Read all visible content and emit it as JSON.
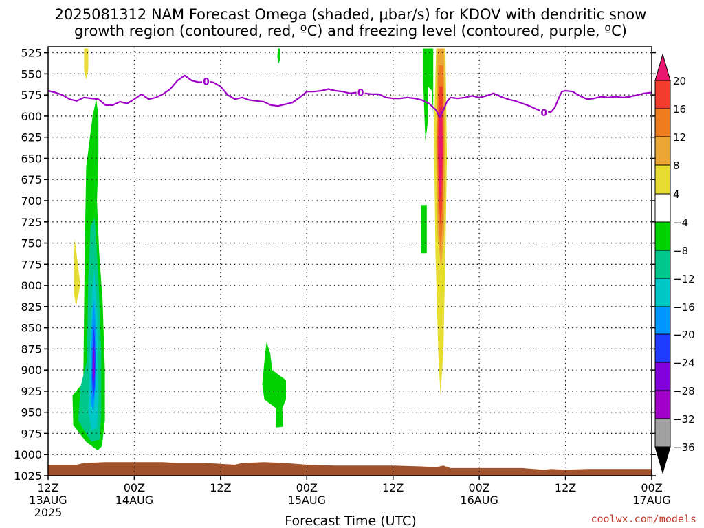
{
  "chart_data": {
    "type": "heatmap",
    "title_lines": [
      "2025081312 NAM Forecast Omega (shaded, μbar/s) for KDOV with dendritic snow",
      "growth region (contoured, red, ºC) and freezing level (contoured, purple, ºC)"
    ],
    "xlabel": "Forecast Time (UTC)",
    "credit": "coolwx.com/models",
    "y_axis": {
      "scale": "pressure (hPa), inverted",
      "ticks": [
        525,
        550,
        575,
        600,
        625,
        650,
        675,
        700,
        725,
        750,
        775,
        800,
        825,
        850,
        875,
        900,
        925,
        950,
        975,
        1000,
        1025
      ],
      "ylim": [
        1025,
        518
      ]
    },
    "x_axis": {
      "xlim_hours": [
        0,
        84
      ],
      "ticks": [
        {
          "hour": 0,
          "lines": [
            "12Z",
            "13AUG",
            "2025"
          ]
        },
        {
          "hour": 12,
          "lines": [
            "00Z",
            "14AUG"
          ]
        },
        {
          "hour": 24,
          "lines": [
            "12Z"
          ]
        },
        {
          "hour": 36,
          "lines": [
            "00Z",
            "15AUG"
          ]
        },
        {
          "hour": 48,
          "lines": [
            "12Z"
          ]
        },
        {
          "hour": 60,
          "lines": [
            "00Z",
            "16AUG"
          ]
        },
        {
          "hour": 72,
          "lines": [
            "12Z"
          ]
        },
        {
          "hour": 84,
          "lines": [
            "00Z",
            "17AUG"
          ]
        }
      ]
    },
    "grid": true,
    "colorbar": {
      "labels": [
        "20",
        "16",
        "12",
        "8",
        "4",
        "−4",
        "−8",
        "−12",
        "−16",
        "−20",
        "−24",
        "−28",
        "−32",
        "−36"
      ],
      "bins": [
        {
          "min": 20,
          "max": null,
          "color": "#e8186e"
        },
        {
          "min": 16,
          "max": 20,
          "color": "#f23c2c"
        },
        {
          "min": 12,
          "max": 16,
          "color": "#f07c20"
        },
        {
          "min": 8,
          "max": 12,
          "color": "#eca636"
        },
        {
          "min": 4,
          "max": 8,
          "color": "#e6dc32"
        },
        {
          "min": -4,
          "max": 4,
          "color": "#ffffff"
        },
        {
          "min": -8,
          "max": -4,
          "color": "#00d200"
        },
        {
          "min": -12,
          "max": -8,
          "color": "#00c88c"
        },
        {
          "min": -16,
          "max": -12,
          "color": "#00c8c8"
        },
        {
          "min": -20,
          "max": -16,
          "color": "#0096ff"
        },
        {
          "min": -24,
          "max": -20,
          "color": "#1e3cff"
        },
        {
          "min": -28,
          "max": -24,
          "color": "#8200dc"
        },
        {
          "min": -32,
          "max": -28,
          "color": "#a000c8"
        },
        {
          "min": -36,
          "max": -32,
          "color": "#a0a0a0"
        },
        {
          "min": null,
          "max": -36,
          "color": "#000000"
        }
      ]
    },
    "omega_regions": [
      {
        "color": "#e6dc32",
        "points": [
          [
            5.0,
            520
          ],
          [
            5.6,
            520
          ],
          [
            5.6,
            545
          ],
          [
            5.3,
            557
          ],
          [
            5.0,
            545
          ]
        ]
      },
      {
        "color": "#e6dc32",
        "points": [
          [
            3.7,
            745
          ],
          [
            4.0,
            765
          ],
          [
            4.5,
            800
          ],
          [
            4.1,
            815
          ],
          [
            3.9,
            825
          ],
          [
            3.6,
            810
          ],
          [
            3.6,
            770
          ]
        ]
      },
      {
        "color": "#00d200",
        "points": [
          [
            6.7,
            580
          ],
          [
            7.0,
            600
          ],
          [
            7.0,
            650
          ],
          [
            6.8,
            700
          ],
          [
            7.1,
            760
          ],
          [
            7.6,
            820
          ],
          [
            7.9,
            900
          ],
          [
            7.9,
            960
          ],
          [
            7.5,
            990
          ],
          [
            6.9,
            995
          ],
          [
            5.3,
            985
          ],
          [
            3.5,
            965
          ],
          [
            3.4,
            930
          ],
          [
            4.9,
            915
          ],
          [
            5.1,
            760
          ],
          [
            5.3,
            660
          ],
          [
            6.2,
            600
          ]
        ]
      },
      {
        "color": "#00c88c",
        "points": [
          [
            6.5,
            720
          ],
          [
            7.0,
            790
          ],
          [
            7.4,
            880
          ],
          [
            7.4,
            950
          ],
          [
            7.2,
            982
          ],
          [
            6.0,
            985
          ],
          [
            4.2,
            960
          ],
          [
            4.5,
            920
          ],
          [
            5.4,
            890
          ],
          [
            5.6,
            790
          ],
          [
            5.9,
            730
          ]
        ]
      },
      {
        "color": "#00c8c8",
        "points": [
          [
            6.4,
            780
          ],
          [
            6.9,
            840
          ],
          [
            7.0,
            930
          ],
          [
            6.8,
            968
          ],
          [
            6.1,
            972
          ],
          [
            5.6,
            950
          ],
          [
            5.8,
            880
          ],
          [
            6.1,
            810
          ]
        ]
      },
      {
        "color": "#0096ff",
        "points": [
          [
            6.4,
            815
          ],
          [
            6.7,
            860
          ],
          [
            6.6,
            920
          ],
          [
            6.3,
            950
          ],
          [
            6.0,
            940
          ],
          [
            6.0,
            880
          ],
          [
            6.1,
            845
          ]
        ]
      },
      {
        "color": "#1e3cff",
        "points": [
          [
            6.4,
            845
          ],
          [
            6.6,
            885
          ],
          [
            6.5,
            920
          ],
          [
            6.3,
            935
          ],
          [
            6.1,
            910
          ],
          [
            6.2,
            870
          ]
        ]
      },
      {
        "color": "#8200dc",
        "points": [
          [
            6.4,
            870
          ],
          [
            6.5,
            905
          ],
          [
            6.3,
            915
          ],
          [
            6.2,
            890
          ]
        ]
      },
      {
        "color": "#00d200",
        "points": [
          [
            32.0,
            520
          ],
          [
            32.3,
            520
          ],
          [
            32.3,
            532
          ],
          [
            32.1,
            538
          ],
          [
            31.9,
            530
          ]
        ]
      },
      {
        "color": "#00d200",
        "points": [
          [
            30.4,
            867
          ],
          [
            30.9,
            880
          ],
          [
            31.2,
            900
          ],
          [
            33.1,
            912
          ],
          [
            33.1,
            935
          ],
          [
            32.6,
            945
          ],
          [
            32.7,
            967
          ],
          [
            31.7,
            968
          ],
          [
            31.7,
            945
          ],
          [
            30.1,
            935
          ],
          [
            29.8,
            917
          ],
          [
            30.2,
            880
          ]
        ]
      },
      {
        "color": "#00d200",
        "points": [
          [
            52.2,
            520
          ],
          [
            53.6,
            520
          ],
          [
            53.6,
            600
          ],
          [
            53.4,
            570
          ],
          [
            52.9,
            565
          ],
          [
            52.8,
            610
          ],
          [
            52.5,
            630
          ],
          [
            52.2,
            560
          ]
        ]
      },
      {
        "color": "#00d200",
        "points": [
          [
            51.9,
            705
          ],
          [
            52.7,
            705
          ],
          [
            52.7,
            762
          ],
          [
            51.9,
            762
          ]
        ]
      },
      {
        "color": "#e6dc32",
        "points": [
          [
            54.0,
            520
          ],
          [
            55.3,
            520
          ],
          [
            55.5,
            650
          ],
          [
            55.3,
            760
          ],
          [
            55.0,
            880
          ],
          [
            54.6,
            930
          ],
          [
            54.3,
            880
          ],
          [
            53.9,
            760
          ],
          [
            53.7,
            620
          ]
        ]
      },
      {
        "color": "#eca636",
        "points": [
          [
            54.2,
            520
          ],
          [
            55.1,
            520
          ],
          [
            55.3,
            640
          ],
          [
            55.1,
            740
          ],
          [
            54.7,
            780
          ],
          [
            54.2,
            740
          ],
          [
            54.0,
            640
          ]
        ]
      },
      {
        "color": "#f07c20",
        "points": [
          [
            54.3,
            540
          ],
          [
            55.0,
            540
          ],
          [
            55.1,
            640
          ],
          [
            54.9,
            730
          ],
          [
            54.6,
            760
          ],
          [
            54.3,
            720
          ],
          [
            54.1,
            630
          ]
        ]
      },
      {
        "color": "#f23c2c",
        "points": [
          [
            54.4,
            565
          ],
          [
            54.9,
            565
          ],
          [
            55.0,
            640
          ],
          [
            54.8,
            710
          ],
          [
            54.6,
            730
          ],
          [
            54.4,
            700
          ],
          [
            54.2,
            630
          ]
        ]
      },
      {
        "color": "#e8186e",
        "points": [
          [
            54.5,
            590
          ],
          [
            54.8,
            590
          ],
          [
            54.9,
            640
          ],
          [
            54.7,
            690
          ],
          [
            54.5,
            700
          ],
          [
            54.3,
            640
          ]
        ]
      }
    ],
    "freezing_level": {
      "label": "0",
      "label_positions": [
        [
          22.0,
          559
        ],
        [
          43.5,
          572
        ],
        [
          69.0,
          596
        ]
      ],
      "points": [
        [
          0,
          570
        ],
        [
          1,
          572
        ],
        [
          2,
          575
        ],
        [
          3,
          580
        ],
        [
          4,
          582
        ],
        [
          5,
          578
        ],
        [
          6,
          579
        ],
        [
          7,
          580
        ],
        [
          8,
          587
        ],
        [
          9,
          587
        ],
        [
          10,
          583
        ],
        [
          11,
          585
        ],
        [
          12,
          580
        ],
        [
          13,
          574
        ],
        [
          14,
          580
        ],
        [
          15,
          578
        ],
        [
          16,
          574
        ],
        [
          17,
          568
        ],
        [
          18,
          558
        ],
        [
          19,
          552
        ],
        [
          20,
          558
        ],
        [
          21,
          560
        ],
        [
          22,
          559
        ],
        [
          23,
          560
        ],
        [
          24,
          565
        ],
        [
          25,
          575
        ],
        [
          26,
          580
        ],
        [
          27,
          578
        ],
        [
          28,
          581
        ],
        [
          29,
          582
        ],
        [
          30,
          583
        ],
        [
          31,
          587
        ],
        [
          32,
          588
        ],
        [
          33,
          586
        ],
        [
          34,
          584
        ],
        [
          35,
          578
        ],
        [
          36,
          571
        ],
        [
          37,
          571
        ],
        [
          38,
          570
        ],
        [
          39,
          568
        ],
        [
          40,
          570
        ],
        [
          41,
          571
        ],
        [
          42,
          573
        ],
        [
          43,
          572
        ],
        [
          44,
          573
        ],
        [
          45,
          574
        ],
        [
          46,
          574
        ],
        [
          47,
          578
        ],
        [
          48,
          579
        ],
        [
          49,
          579
        ],
        [
          50,
          578
        ],
        [
          51,
          579
        ],
        [
          52,
          581
        ],
        [
          53,
          585
        ],
        [
          54,
          593
        ],
        [
          54.5,
          601
        ],
        [
          55,
          593
        ],
        [
          55.5,
          583
        ],
        [
          56,
          578
        ],
        [
          57,
          579
        ],
        [
          58,
          578
        ],
        [
          59,
          576
        ],
        [
          60,
          578
        ],
        [
          61,
          576
        ],
        [
          62,
          573
        ],
        [
          63,
          577
        ],
        [
          64,
          580
        ],
        [
          65,
          582
        ],
        [
          66,
          585
        ],
        [
          67,
          588
        ],
        [
          68,
          592
        ],
        [
          69,
          595
        ],
        [
          70,
          595
        ],
        [
          70.5,
          590
        ],
        [
          71,
          580
        ],
        [
          71.5,
          571
        ],
        [
          72,
          570
        ],
        [
          73,
          571
        ],
        [
          74,
          576
        ],
        [
          75,
          580
        ],
        [
          76,
          579
        ],
        [
          77,
          577
        ],
        [
          78,
          578
        ],
        [
          79,
          577
        ],
        [
          80,
          578
        ],
        [
          81,
          577
        ],
        [
          82,
          575
        ],
        [
          83,
          573
        ],
        [
          84,
          572
        ]
      ]
    },
    "surface_terrain": {
      "color": "#a0522d",
      "points": [
        [
          0,
          1012
        ],
        [
          4,
          1012
        ],
        [
          5,
          1010
        ],
        [
          8,
          1009
        ],
        [
          10,
          1009
        ],
        [
          13,
          1009
        ],
        [
          16,
          1009
        ],
        [
          18,
          1010
        ],
        [
          22,
          1010
        ],
        [
          26,
          1012
        ],
        [
          27,
          1010
        ],
        [
          30,
          1009
        ],
        [
          33,
          1010
        ],
        [
          36,
          1012
        ],
        [
          40,
          1013
        ],
        [
          44,
          1013
        ],
        [
          48,
          1013
        ],
        [
          52,
          1014
        ],
        [
          54,
          1015
        ],
        [
          55,
          1013
        ],
        [
          56,
          1016
        ],
        [
          60,
          1016
        ],
        [
          66,
          1016
        ],
        [
          69,
          1018
        ],
        [
          70,
          1017
        ],
        [
          72,
          1018
        ],
        [
          75,
          1017
        ],
        [
          80,
          1017
        ],
        [
          84,
          1017
        ]
      ]
    }
  }
}
